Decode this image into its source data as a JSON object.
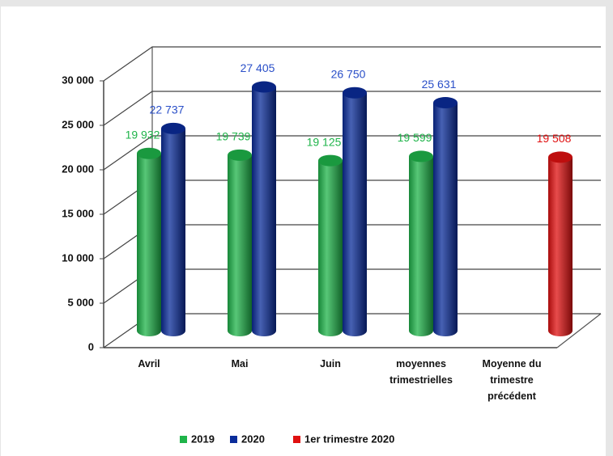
{
  "chart_data": {
    "type": "bar3d",
    "categories": [
      "Avril",
      "Mai",
      "Juin",
      "moyennes trimestrielles",
      "Moyenne du trimestre précédent"
    ],
    "series": [
      {
        "name": "2019",
        "color": "#1fb44a",
        "values": [
          19932,
          19739,
          19125,
          19599,
          null
        ],
        "value_labels": [
          "19 932",
          "19 739",
          "19 125",
          "19 599",
          null
        ]
      },
      {
        "name": "2020",
        "color": "#0a2c9a",
        "values": [
          22737,
          27405,
          26750,
          25631,
          null
        ],
        "value_labels": [
          "22 737",
          "27 405",
          "26 750",
          "25 631",
          null
        ]
      },
      {
        "name": "1er trimestre 2020",
        "color": "#e01010",
        "values": [
          null,
          null,
          null,
          null,
          19508
        ],
        "value_labels": [
          null,
          null,
          null,
          null,
          "19 508"
        ]
      }
    ],
    "ylim": [
      0,
      30000
    ],
    "yticks": [
      0,
      {
        "value": 5000,
        "label": "5 000"
      },
      {
        "value": 10000,
        "label": "10 000"
      },
      {
        "value": 15000,
        "label": "15 000"
      },
      {
        "value": 20000,
        "label": "20 000"
      },
      {
        "value": 25000,
        "label": "25 000"
      },
      {
        "value": 30000,
        "label": "30 000"
      }
    ],
    "grid": true,
    "legend": "bottom"
  }
}
